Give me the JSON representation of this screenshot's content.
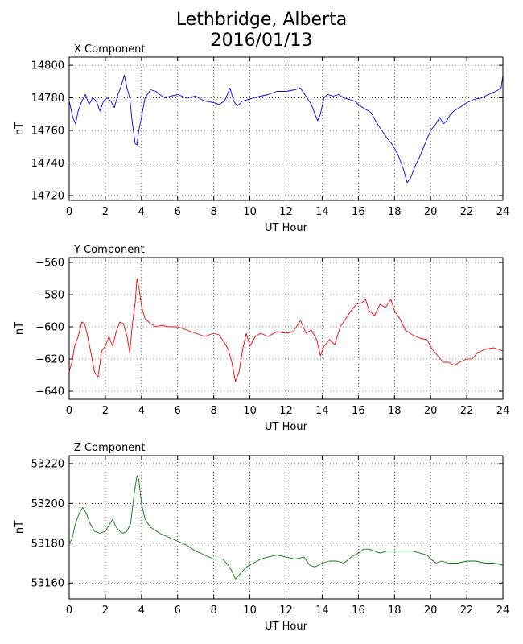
{
  "figure": {
    "title_line1": "Lethbridge, Alberta",
    "title_line2": "2016/01/13"
  },
  "chart_data": [
    {
      "type": "line",
      "title": "X Component",
      "xlabel": "UT Hour",
      "ylabel": "nT",
      "xlim": [
        0,
        24
      ],
      "ylim": [
        14717,
        14805
      ],
      "xticks": [
        0,
        2,
        4,
        6,
        8,
        10,
        12,
        14,
        16,
        18,
        20,
        22,
        24
      ],
      "yticks": [
        14720,
        14740,
        14760,
        14780,
        14800
      ],
      "grid": true,
      "color": "#0000ff",
      "series": [
        {
          "x": [
            0.0,
            0.2,
            0.35,
            0.5,
            0.7,
            0.9,
            1.1,
            1.3,
            1.5,
            1.7,
            1.9,
            2.1,
            2.3,
            2.5,
            2.7,
            2.9,
            3.05,
            3.2,
            3.35,
            3.5,
            3.65,
            3.75,
            3.85,
            4.0,
            4.2,
            4.5,
            4.8,
            5.0,
            5.3,
            5.6,
            6.0,
            6.5,
            7.0,
            7.5,
            8.0,
            8.3,
            8.6,
            8.9,
            9.1,
            9.3,
            9.6,
            9.9,
            10.2,
            10.6,
            11.0,
            11.5,
            12.0,
            12.5,
            12.8,
            13.1,
            13.4,
            13.6,
            13.75,
            13.9,
            14.1,
            14.3,
            14.6,
            14.9,
            15.2,
            15.5,
            15.8,
            16.1,
            16.4,
            16.7,
            17.0,
            17.3,
            17.6,
            17.9,
            18.2,
            18.5,
            18.7,
            18.9,
            19.1,
            19.4,
            19.7,
            20.0,
            20.3,
            20.5,
            20.7,
            20.9,
            21.1,
            21.3,
            21.6,
            22.0,
            22.4,
            22.8,
            23.2,
            23.6,
            23.9,
            24.0
          ],
          "y": [
            14778,
            14768,
            14764,
            14772,
            14778,
            14782,
            14776,
            14780,
            14778,
            14772,
            14778,
            14780,
            14778,
            14774,
            14782,
            14788,
            14794,
            14786,
            14780,
            14764,
            14752,
            14751,
            14760,
            14768,
            14780,
            14785,
            14784,
            14782,
            14780,
            14781,
            14782,
            14780,
            14781,
            14778,
            14777,
            14776,
            14778,
            14786,
            14778,
            14775,
            14778,
            14779,
            14780,
            14781,
            14782,
            14784,
            14784,
            14785,
            14786,
            14781,
            14776,
            14770,
            14766,
            14770,
            14780,
            14782,
            14781,
            14782,
            14780,
            14779,
            14778,
            14775,
            14773,
            14771,
            14765,
            14760,
            14755,
            14751,
            14745,
            14736,
            14728,
            14731,
            14737,
            14744,
            14752,
            14760,
            14764,
            14768,
            14764,
            14766,
            14770,
            14772,
            14774,
            14777,
            14779,
            14780,
            14782,
            14784,
            14786,
            14794
          ]
        }
      ]
    },
    {
      "type": "line",
      "title": "Y Component",
      "xlabel": "UT Hour",
      "ylabel": "nT",
      "xlim": [
        0,
        24
      ],
      "ylim": [
        -645,
        -557
      ],
      "xticks": [
        0,
        2,
        4,
        6,
        8,
        10,
        12,
        14,
        16,
        18,
        20,
        22,
        24
      ],
      "yticks": [
        -640,
        -620,
        -600,
        -580,
        -560
      ],
      "grid": true,
      "color": "#ff0000",
      "series": [
        {
          "x": [
            0.0,
            0.15,
            0.3,
            0.5,
            0.7,
            0.85,
            1.0,
            1.2,
            1.4,
            1.6,
            1.8,
            2.0,
            2.2,
            2.4,
            2.6,
            2.8,
            3.0,
            3.2,
            3.35,
            3.5,
            3.65,
            3.75,
            3.85,
            4.0,
            4.2,
            4.5,
            4.8,
            5.1,
            5.5,
            6.0,
            6.5,
            7.0,
            7.5,
            8.0,
            8.3,
            8.6,
            8.8,
            9.0,
            9.2,
            9.4,
            9.6,
            9.8,
            10.0,
            10.3,
            10.6,
            11.0,
            11.5,
            12.0,
            12.4,
            12.8,
            13.1,
            13.4,
            13.7,
            13.9,
            14.1,
            14.4,
            14.7,
            15.0,
            15.3,
            15.6,
            15.9,
            16.2,
            16.4,
            16.6,
            16.9,
            17.2,
            17.5,
            17.8,
            18.0,
            18.3,
            18.6,
            19.0,
            19.4,
            19.8,
            20.1,
            20.4,
            20.7,
            21.0,
            21.3,
            21.6,
            22.0,
            22.3,
            22.6,
            23.0,
            23.5,
            24.0
          ],
          "y": [
            -628,
            -622,
            -612,
            -606,
            -597,
            -598,
            -605,
            -616,
            -628,
            -631,
            -615,
            -612,
            -606,
            -612,
            -603,
            -597,
            -598,
            -606,
            -616,
            -598,
            -585,
            -570,
            -575,
            -587,
            -595,
            -598,
            -600,
            -599,
            -600,
            -600,
            -602,
            -604,
            -606,
            -604,
            -605,
            -610,
            -614,
            -622,
            -634,
            -628,
            -614,
            -604,
            -612,
            -606,
            -604,
            -606,
            -603,
            -604,
            -603,
            -596,
            -604,
            -602,
            -608,
            -618,
            -612,
            -608,
            -611,
            -600,
            -595,
            -590,
            -586,
            -585,
            -583,
            -590,
            -593,
            -586,
            -588,
            -583,
            -590,
            -595,
            -602,
            -605,
            -607,
            -608,
            -614,
            -618,
            -622,
            -622,
            -624,
            -622,
            -620,
            -620,
            -616,
            -614,
            -613,
            -615
          ]
        }
      ]
    },
    {
      "type": "line",
      "title": "Z Component",
      "xlabel": "UT Hour",
      "ylabel": "nT",
      "xlim": [
        0,
        24
      ],
      "ylim": [
        53152,
        53224
      ],
      "xticks": [
        0,
        2,
        4,
        6,
        8,
        10,
        12,
        14,
        16,
        18,
        20,
        22,
        24
      ],
      "yticks": [
        53160,
        53180,
        53200,
        53220
      ],
      "grid": true,
      "color": "#008000",
      "series": [
        {
          "x": [
            0.0,
            0.15,
            0.35,
            0.55,
            0.75,
            0.95,
            1.15,
            1.4,
            1.7,
            2.0,
            2.2,
            2.4,
            2.6,
            2.8,
            3.0,
            3.2,
            3.4,
            3.6,
            3.75,
            3.85,
            4.0,
            4.2,
            4.5,
            5.0,
            5.5,
            6.0,
            6.5,
            7.0,
            7.5,
            8.0,
            8.5,
            8.8,
            9.0,
            9.2,
            9.5,
            9.8,
            10.2,
            10.6,
            11.0,
            11.5,
            12.0,
            12.5,
            13.0,
            13.3,
            13.6,
            14.0,
            14.4,
            14.8,
            15.2,
            15.6,
            16.0,
            16.3,
            16.6,
            16.9,
            17.2,
            17.6,
            18.0,
            18.5,
            19.0,
            19.4,
            19.8,
            20.0,
            20.3,
            20.6,
            21.0,
            21.5,
            22.0,
            22.5,
            23.0,
            23.5,
            24.0
          ],
          "y": [
            53180,
            53182,
            53190,
            53195,
            53198,
            53195,
            53190,
            53186,
            53185,
            53186,
            53189,
            53192,
            53188,
            53186,
            53185,
            53186,
            53190,
            53205,
            53214,
            53212,
            53200,
            53192,
            53188,
            53185,
            53183,
            53181,
            53179,
            53176,
            53174,
            53172,
            53172,
            53169,
            53166,
            53162,
            53165,
            53168,
            53170,
            53172,
            53173,
            53174,
            53173,
            53172,
            53173,
            53169,
            53168,
            53170,
            53171,
            53171,
            53170,
            53173,
            53175,
            53177,
            53177,
            53176,
            53175,
            53176,
            53176,
            53176,
            53176,
            53175,
            53174,
            53172,
            53170,
            53171,
            53170,
            53170,
            53171,
            53171,
            53170,
            53170,
            53169
          ]
        }
      ]
    }
  ]
}
